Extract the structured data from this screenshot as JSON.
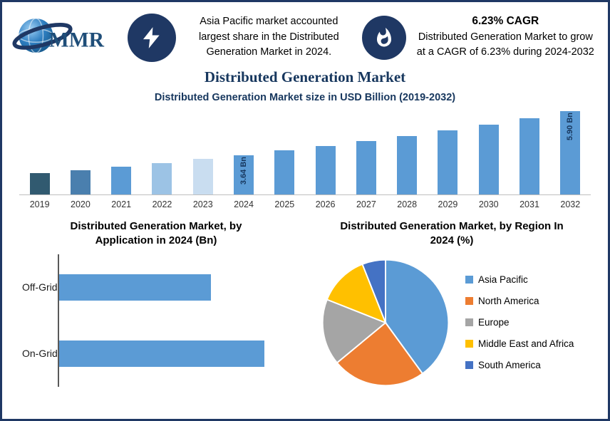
{
  "page": {
    "border_color": "#1f3864",
    "background": "#ffffff"
  },
  "header": {
    "logo_text": "MMR",
    "callout1": {
      "icon": "lightning-icon",
      "text": "Asia Pacific market accounted largest share in the Distributed Generation Market in 2024."
    },
    "callout2": {
      "icon": "flame-icon",
      "heading": "6.23% CAGR",
      "text": "Distributed Generation Market to grow at a CAGR of 6.23% during 2024-2032"
    }
  },
  "title": "Distributed Generation Market",
  "chart_data": [
    {
      "type": "bar",
      "title": "Distributed Generation Market size in USD Billion (2019-2032)",
      "categories": [
        "2019",
        "2020",
        "2021",
        "2022",
        "2023",
        "2024",
        "2025",
        "2026",
        "2027",
        "2028",
        "2029",
        "2030",
        "2031",
        "2032"
      ],
      "values": [
        2.69,
        2.86,
        3.04,
        3.23,
        3.43,
        3.64,
        3.87,
        4.11,
        4.36,
        4.64,
        4.92,
        5.23,
        5.56,
        5.9
      ],
      "unit": "USD Bn",
      "data_labels": [
        "",
        "",
        "",
        "",
        "",
        "3.64 Bn",
        "",
        "",
        "",
        "",
        "",
        "",
        "",
        "5.90 Bn"
      ],
      "bar_colors": [
        "#315a70",
        "#4a7fae",
        "#5b9bd5",
        "#9cc3e5",
        "#c9ddf0",
        "#5b9bd5",
        "#5b9bd5",
        "#5b9bd5",
        "#5b9bd5",
        "#5b9bd5",
        "#5b9bd5",
        "#5b9bd5",
        "#5b9bd5",
        "#5b9bd5"
      ],
      "ylim": [
        1.6,
        5.95
      ],
      "grid": false
    },
    {
      "type": "bar",
      "orientation": "horizontal",
      "title": "Distributed Generation Market, by Application in 2024 (Bn)",
      "categories": [
        "Off-Grid",
        "On-Grid"
      ],
      "values": [
        0.74,
        1.0
      ],
      "bar_color": "#5b9bd5",
      "xlim": [
        0,
        1.18
      ]
    },
    {
      "type": "pie",
      "title": "Distributed Generation Market, by Region In 2024 (%)",
      "labels": [
        "Asia Pacific",
        "North America",
        "Europe",
        "Middle East and Africa",
        "South America"
      ],
      "values": [
        40,
        24,
        17,
        13,
        6
      ],
      "colors": [
        "#5b9bd5",
        "#ed7d31",
        "#a5a5a5",
        "#ffc000",
        "#4472c4"
      ],
      "legend_position": "right"
    }
  ]
}
